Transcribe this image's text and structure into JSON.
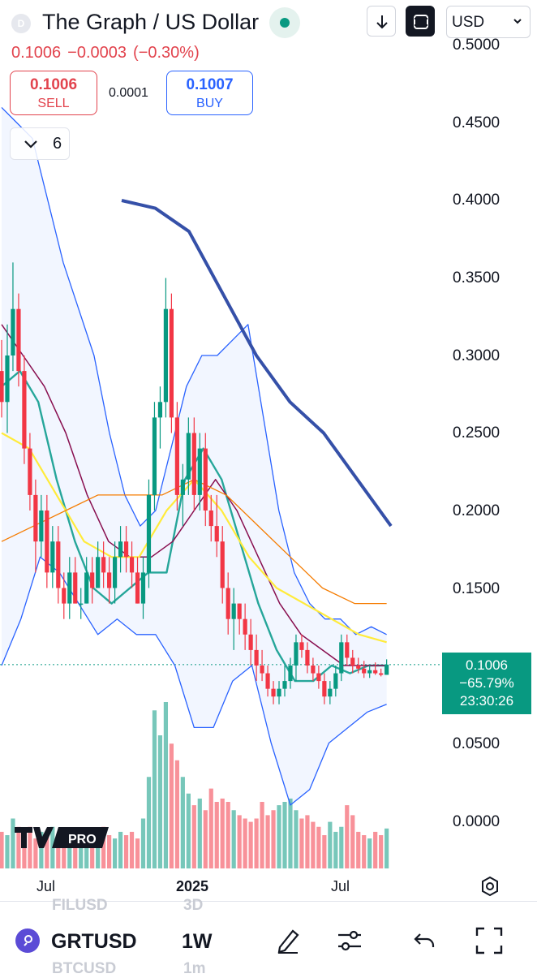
{
  "header": {
    "logo_letter": "D",
    "title": "The Graph / US Dollar",
    "currency": "USD"
  },
  "quote": {
    "last": "0.1006",
    "change": "−0.0003",
    "change_pct": "(−0.30%)",
    "sell_price": "0.1006",
    "sell_label": "SELL",
    "spread": "0.0001",
    "buy_price": "0.1007",
    "buy_label": "BUY"
  },
  "indicators": {
    "collapsed_count": "6"
  },
  "price_axis": {
    "labels": [
      "0.5000",
      "0.4500",
      "0.4000",
      "0.3500",
      "0.3000",
      "0.2500",
      "0.2000",
      "0.1500",
      "0.1000",
      "0.0500",
      "0.0000"
    ],
    "current_price": "0.1006",
    "current_change": "−65.79%",
    "countdown": "23:30:26"
  },
  "time_axis": {
    "labels": [
      "Jul",
      "2025",
      "Jul"
    ]
  },
  "colors": {
    "up": "#089981",
    "down": "#f23645",
    "bb_line": "#2962ff",
    "ma_green": "#26a69a",
    "ma_maroon": "#880e4f",
    "ma_yellow": "#ffeb3b",
    "ma_orange": "#f57c00",
    "ma_navy": "#3550a8"
  },
  "chart_data": {
    "type": "candlestick",
    "ylim": [
      0,
      0.5
    ],
    "timeframe": "1W",
    "x_ticks": [
      "Jul",
      "2025",
      "Jul"
    ],
    "candles": [
      [
        0.29,
        0.31,
        0.26,
        0.27
      ],
      [
        0.27,
        0.32,
        0.25,
        0.3
      ],
      [
        0.3,
        0.36,
        0.29,
        0.33
      ],
      [
        0.33,
        0.34,
        0.28,
        0.29
      ],
      [
        0.29,
        0.3,
        0.23,
        0.24
      ],
      [
        0.24,
        0.25,
        0.2,
        0.21
      ],
      [
        0.21,
        0.22,
        0.16,
        0.18
      ],
      [
        0.18,
        0.21,
        0.17,
        0.2
      ],
      [
        0.2,
        0.21,
        0.15,
        0.16
      ],
      [
        0.16,
        0.19,
        0.15,
        0.18
      ],
      [
        0.18,
        0.19,
        0.14,
        0.15
      ],
      [
        0.15,
        0.16,
        0.13,
        0.14
      ],
      [
        0.14,
        0.17,
        0.13,
        0.16
      ],
      [
        0.16,
        0.17,
        0.14,
        0.14
      ],
      [
        0.14,
        0.15,
        0.13,
        0.14
      ],
      [
        0.14,
        0.17,
        0.14,
        0.16
      ],
      [
        0.16,
        0.17,
        0.14,
        0.15
      ],
      [
        0.15,
        0.18,
        0.15,
        0.17
      ],
      [
        0.17,
        0.18,
        0.15,
        0.16
      ],
      [
        0.16,
        0.17,
        0.14,
        0.15
      ],
      [
        0.15,
        0.18,
        0.14,
        0.17
      ],
      [
        0.17,
        0.19,
        0.16,
        0.18
      ],
      [
        0.18,
        0.19,
        0.16,
        0.17
      ],
      [
        0.17,
        0.18,
        0.15,
        0.16
      ],
      [
        0.16,
        0.17,
        0.14,
        0.14
      ],
      [
        0.14,
        0.17,
        0.13,
        0.16
      ],
      [
        0.16,
        0.22,
        0.15,
        0.21
      ],
      [
        0.21,
        0.27,
        0.2,
        0.26
      ],
      [
        0.26,
        0.28,
        0.24,
        0.27
      ],
      [
        0.27,
        0.35,
        0.26,
        0.33
      ],
      [
        0.33,
        0.34,
        0.25,
        0.26
      ],
      [
        0.26,
        0.27,
        0.2,
        0.21
      ],
      [
        0.21,
        0.23,
        0.19,
        0.22
      ],
      [
        0.22,
        0.26,
        0.21,
        0.25
      ],
      [
        0.25,
        0.26,
        0.2,
        0.21
      ],
      [
        0.21,
        0.25,
        0.2,
        0.24
      ],
      [
        0.24,
        0.25,
        0.19,
        0.2
      ],
      [
        0.2,
        0.21,
        0.18,
        0.19
      ],
      [
        0.19,
        0.21,
        0.17,
        0.18
      ],
      [
        0.18,
        0.19,
        0.14,
        0.15
      ],
      [
        0.15,
        0.16,
        0.12,
        0.13
      ],
      [
        0.13,
        0.15,
        0.11,
        0.14
      ],
      [
        0.14,
        0.14,
        0.12,
        0.13
      ],
      [
        0.13,
        0.14,
        0.11,
        0.12
      ],
      [
        0.12,
        0.13,
        0.1,
        0.11
      ],
      [
        0.11,
        0.12,
        0.09,
        0.1
      ],
      [
        0.1,
        0.11,
        0.09,
        0.095
      ],
      [
        0.095,
        0.1,
        0.08,
        0.085
      ],
      [
        0.085,
        0.09,
        0.075,
        0.08
      ],
      [
        0.08,
        0.09,
        0.075,
        0.085
      ],
      [
        0.085,
        0.1,
        0.08,
        0.09
      ],
      [
        0.09,
        0.105,
        0.085,
        0.1
      ],
      [
        0.1,
        0.12,
        0.09,
        0.115
      ],
      [
        0.115,
        0.12,
        0.105,
        0.11
      ],
      [
        0.11,
        0.115,
        0.095,
        0.1
      ],
      [
        0.1,
        0.105,
        0.09,
        0.095
      ],
      [
        0.095,
        0.1,
        0.085,
        0.09
      ],
      [
        0.09,
        0.095,
        0.075,
        0.08
      ],
      [
        0.08,
        0.09,
        0.075,
        0.085
      ],
      [
        0.085,
        0.1,
        0.08,
        0.095
      ],
      [
        0.095,
        0.12,
        0.09,
        0.115
      ],
      [
        0.115,
        0.12,
        0.1,
        0.105
      ],
      [
        0.105,
        0.11,
        0.095,
        0.1
      ],
      [
        0.1,
        0.105,
        0.095,
        0.098
      ],
      [
        0.098,
        0.103,
        0.092,
        0.095
      ],
      [
        0.095,
        0.1,
        0.092,
        0.097
      ],
      [
        0.097,
        0.102,
        0.094,
        0.095
      ],
      [
        0.095,
        0.098,
        0.093,
        0.094
      ],
      [
        0.094,
        0.104,
        0.094,
        0.1006
      ]
    ],
    "volume": [
      0.22,
      0.2,
      0.3,
      0.25,
      0.2,
      0.25,
      0.18,
      0.22,
      0.2,
      0.25,
      0.18,
      0.15,
      0.2,
      0.18,
      0.15,
      0.2,
      0.18,
      0.22,
      0.25,
      0.2,
      0.18,
      0.22,
      0.2,
      0.22,
      0.18,
      0.3,
      0.55,
      0.95,
      0.8,
      1.0,
      0.75,
      0.65,
      0.55,
      0.45,
      0.38,
      0.42,
      0.35,
      0.48,
      0.4,
      0.42,
      0.4,
      0.35,
      0.32,
      0.3,
      0.28,
      0.3,
      0.4,
      0.32,
      0.35,
      0.38,
      0.4,
      0.42,
      0.35,
      0.3,
      0.32,
      0.28,
      0.25,
      0.2,
      0.28,
      0.22,
      0.25,
      0.38,
      0.32,
      0.22,
      0.2,
      0.18,
      0.22,
      0.2,
      0.24
    ],
    "series": [
      {
        "type": "bollinger_upper",
        "values": [
          0.46,
          0.45,
          0.44,
          0.4,
          0.36,
          0.33,
          0.3,
          0.25,
          0.21,
          0.19,
          0.2,
          0.24,
          0.28,
          0.3,
          0.3,
          0.31,
          0.32,
          0.26,
          0.2,
          0.16,
          0.14,
          0.13,
          0.13,
          0.12,
          0.125,
          0.12
        ]
      },
      {
        "type": "bollinger_lower",
        "values": [
          0.1,
          0.13,
          0.17,
          0.16,
          0.14,
          0.12,
          0.13,
          0.12,
          0.12,
          0.1,
          0.06,
          0.06,
          0.09,
          0.1,
          0.05,
          0.01,
          0.02,
          0.05,
          0.06,
          0.07,
          0.075
        ]
      },
      {
        "type": "moving_average",
        "values": [
          0.28,
          0.29,
          0.27,
          0.22,
          0.18,
          0.15,
          0.14,
          0.15,
          0.16,
          0.16,
          0.22,
          0.24,
          0.22,
          0.18,
          0.14,
          0.11,
          0.09,
          0.09,
          0.1,
          0.095,
          0.1,
          0.1
        ]
      },
      {
        "type": "moving_average",
        "values": [
          0.32,
          0.3,
          0.28,
          0.25,
          0.21,
          0.18,
          0.17,
          0.17,
          0.18,
          0.2,
          0.22,
          0.2,
          0.17,
          0.14,
          0.12,
          0.11,
          0.1,
          0.1,
          0.1
        ]
      },
      {
        "type": "moving_average",
        "values": [
          0.25,
          0.24,
          0.21,
          0.18,
          0.17,
          0.17,
          0.2,
          0.22,
          0.2,
          0.17,
          0.15,
          0.14,
          0.13,
          0.12,
          0.115
        ]
      },
      {
        "type": "moving_average",
        "values": [
          0.18,
          0.19,
          0.2,
          0.21,
          0.21,
          0.21,
          0.22,
          0.21,
          0.19,
          0.17,
          0.15,
          0.14,
          0.14
        ]
      },
      {
        "type": "moving_average",
        "values": [
          0.4,
          0.395,
          0.38,
          0.34,
          0.3,
          0.27,
          0.25,
          0.22,
          0.19
        ]
      }
    ]
  },
  "bottom": {
    "ghost_top_symbol": "FILUSD",
    "ghost_top_tf": "3D",
    "symbol": "GRTUSD",
    "timeframe": "1W",
    "ghost_bottom_symbol": "BTCUSD",
    "ghost_bottom_tf": "1m"
  }
}
